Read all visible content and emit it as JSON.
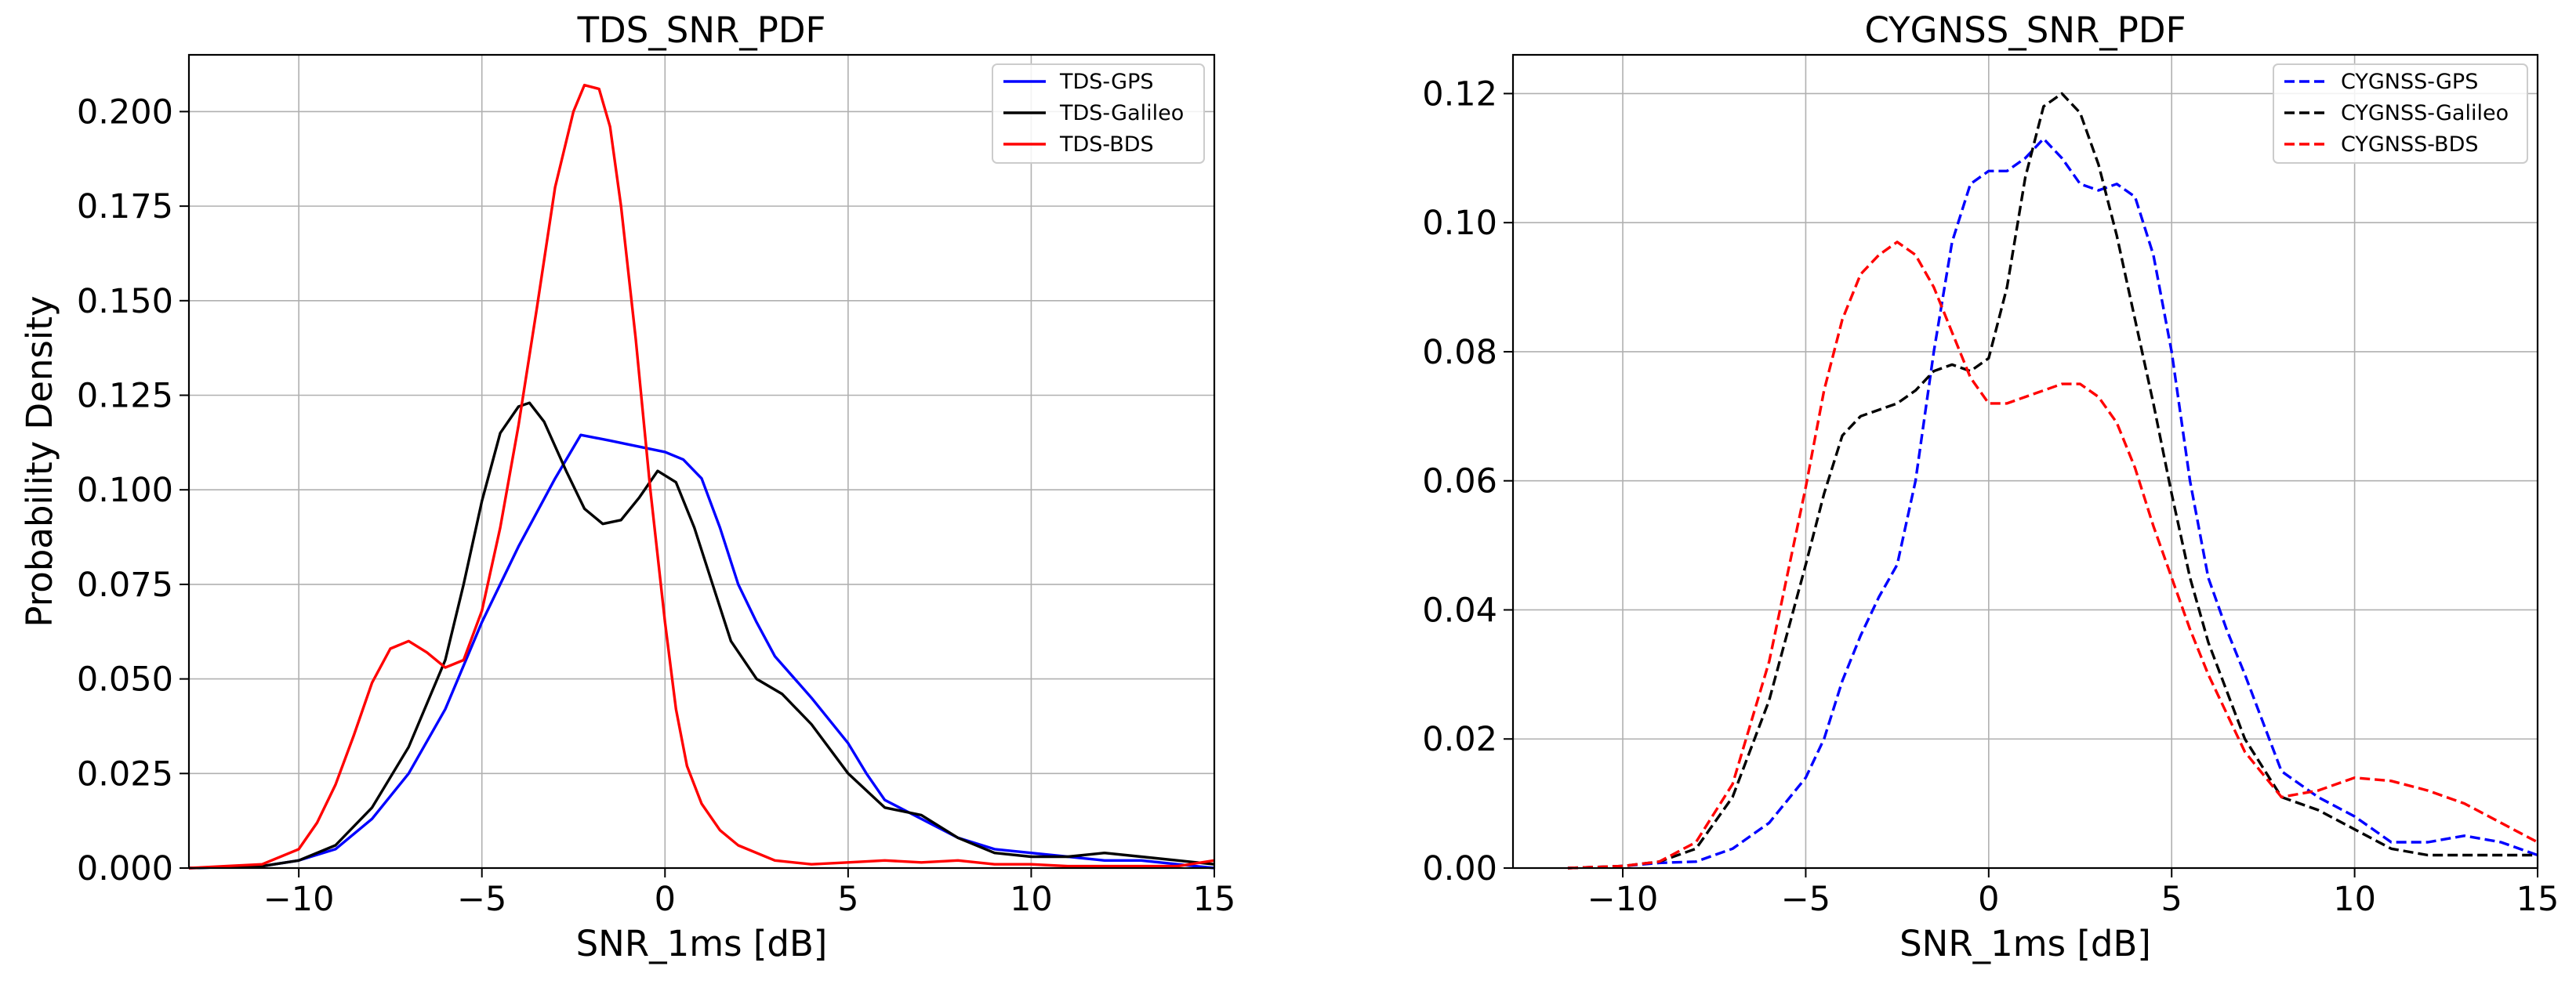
{
  "chart_data": [
    {
      "type": "line",
      "title": "TDS_SNR_PDF",
      "xlabel": "SNR_1ms [dB]",
      "ylabel": "Probability Density",
      "xlim": [
        -13,
        15
      ],
      "ylim": [
        0,
        0.215
      ],
      "xticks": [
        -10,
        -5,
        0,
        5,
        10,
        15
      ],
      "xtick_labels": [
        "−10",
        "−5",
        "0",
        "5",
        "10",
        "15"
      ],
      "yticks": [
        0,
        0.025,
        0.05,
        0.075,
        0.1,
        0.125,
        0.15,
        0.175,
        0.2
      ],
      "ytick_labels": [
        "0.000",
        "0.025",
        "0.050",
        "0.075",
        "0.100",
        "0.125",
        "0.150",
        "0.175",
        "0.200"
      ],
      "grid": true,
      "legend_position": "top-right",
      "series": [
        {
          "name": "TDS-GPS",
          "color": "#0000ff",
          "dash": "solid",
          "points": [
            [
              -13,
              0
            ],
            [
              -11,
              0.0005
            ],
            [
              -10,
              0.002
            ],
            [
              -9,
              0.005
            ],
            [
              -8,
              0.013
            ],
            [
              -7,
              0.025
            ],
            [
              -6,
              0.042
            ],
            [
              -5,
              0.065
            ],
            [
              -4,
              0.085
            ],
            [
              -3,
              0.103
            ],
            [
              -2.3,
              0.1145
            ],
            [
              -1.5,
              0.113
            ],
            [
              -1,
              0.112
            ],
            [
              0,
              0.11
            ],
            [
              0.5,
              0.108
            ],
            [
              1,
              0.103
            ],
            [
              1.5,
              0.09
            ],
            [
              2,
              0.075
            ],
            [
              2.5,
              0.065
            ],
            [
              3,
              0.056
            ],
            [
              4,
              0.045
            ],
            [
              5,
              0.033
            ],
            [
              5.5,
              0.025
            ],
            [
              6,
              0.018
            ],
            [
              7,
              0.013
            ],
            [
              8,
              0.008
            ],
            [
              9,
              0.005
            ],
            [
              10,
              0.004
            ],
            [
              11,
              0.003
            ],
            [
              12,
              0.002
            ],
            [
              13,
              0.002
            ],
            [
              14,
              0.001
            ],
            [
              15,
              0.0
            ]
          ]
        },
        {
          "name": "TDS-Galileo",
          "color": "#000000",
          "dash": "solid",
          "points": [
            [
              -13,
              0
            ],
            [
              -11,
              0.0005
            ],
            [
              -10,
              0.002
            ],
            [
              -9,
              0.006
            ],
            [
              -8,
              0.016
            ],
            [
              -7,
              0.032
            ],
            [
              -6,
              0.055
            ],
            [
              -5.5,
              0.075
            ],
            [
              -5,
              0.097
            ],
            [
              -4.5,
              0.115
            ],
            [
              -4,
              0.122
            ],
            [
              -3.7,
              0.123
            ],
            [
              -3.3,
              0.118
            ],
            [
              -2.7,
              0.105
            ],
            [
              -2.2,
              0.095
            ],
            [
              -1.7,
              0.091
            ],
            [
              -1.2,
              0.092
            ],
            [
              -0.7,
              0.098
            ],
            [
              -0.2,
              0.105
            ],
            [
              0.3,
              0.102
            ],
            [
              0.8,
              0.09
            ],
            [
              1.3,
              0.075
            ],
            [
              1.8,
              0.06
            ],
            [
              2.5,
              0.05
            ],
            [
              3.2,
              0.046
            ],
            [
              4,
              0.038
            ],
            [
              5,
              0.025
            ],
            [
              6,
              0.016
            ],
            [
              7,
              0.014
            ],
            [
              8,
              0.008
            ],
            [
              9,
              0.004
            ],
            [
              10,
              0.003
            ],
            [
              11,
              0.003
            ],
            [
              12,
              0.004
            ],
            [
              13,
              0.003
            ],
            [
              14,
              0.002
            ],
            [
              15,
              0.001
            ]
          ]
        },
        {
          "name": "TDS-BDS",
          "color": "#ff0000",
          "dash": "solid",
          "points": [
            [
              -13,
              0
            ],
            [
              -12,
              0.0005
            ],
            [
              -11,
              0.001
            ],
            [
              -10,
              0.005
            ],
            [
              -9.5,
              0.012
            ],
            [
              -9,
              0.022
            ],
            [
              -8.5,
              0.035
            ],
            [
              -8,
              0.049
            ],
            [
              -7.5,
              0.058
            ],
            [
              -7,
              0.06
            ],
            [
              -6.5,
              0.057
            ],
            [
              -6,
              0.053
            ],
            [
              -5.5,
              0.055
            ],
            [
              -5,
              0.068
            ],
            [
              -4.5,
              0.09
            ],
            [
              -4,
              0.117
            ],
            [
              -3.5,
              0.148
            ],
            [
              -3,
              0.18
            ],
            [
              -2.5,
              0.2
            ],
            [
              -2.2,
              0.207
            ],
            [
              -1.8,
              0.206
            ],
            [
              -1.5,
              0.196
            ],
            [
              -1.2,
              0.175
            ],
            [
              -0.8,
              0.14
            ],
            [
              -0.4,
              0.1
            ],
            [
              0,
              0.065
            ],
            [
              0.3,
              0.042
            ],
            [
              0.6,
              0.027
            ],
            [
              1,
              0.017
            ],
            [
              1.5,
              0.01
            ],
            [
              2,
              0.006
            ],
            [
              3,
              0.002
            ],
            [
              4,
              0.001
            ],
            [
              5,
              0.0015
            ],
            [
              6,
              0.002
            ],
            [
              7,
              0.0015
            ],
            [
              8,
              0.002
            ],
            [
              9,
              0.001
            ],
            [
              10,
              0.001
            ],
            [
              11,
              0.0005
            ],
            [
              12,
              0.0005
            ],
            [
              13,
              0.0005
            ],
            [
              14,
              0.0005
            ],
            [
              15,
              0.002
            ]
          ]
        }
      ]
    },
    {
      "type": "line",
      "title": "CYGNSS_SNR_PDF",
      "xlabel": "SNR_1ms [dB]",
      "ylabel": "",
      "xlim": [
        -13,
        15
      ],
      "ylim": [
        0,
        0.126
      ],
      "xticks": [
        -10,
        -5,
        0,
        5,
        10,
        15
      ],
      "xtick_labels": [
        "−10",
        "−5",
        "0",
        "5",
        "10",
        "15"
      ],
      "yticks": [
        0,
        0.02,
        0.04,
        0.06,
        0.08,
        0.1,
        0.12
      ],
      "ytick_labels": [
        "0.00",
        "0.02",
        "0.04",
        "0.06",
        "0.08",
        "0.10",
        "0.12"
      ],
      "grid": true,
      "legend_position": "top-right",
      "series": [
        {
          "name": "CYGNSS-GPS",
          "color": "#0000ff",
          "dash": "dashed",
          "points": [
            [
              -11.5,
              0
            ],
            [
              -10,
              0.0003
            ],
            [
              -9,
              0.0008
            ],
            [
              -8,
              0.001
            ],
            [
              -7,
              0.003
            ],
            [
              -6,
              0.007
            ],
            [
              -5,
              0.014
            ],
            [
              -4.5,
              0.02
            ],
            [
              -4,
              0.029
            ],
            [
              -3.5,
              0.036
            ],
            [
              -3,
              0.042
            ],
            [
              -2.5,
              0.047
            ],
            [
              -2,
              0.06
            ],
            [
              -1.5,
              0.08
            ],
            [
              -1,
              0.097
            ],
            [
              -0.5,
              0.106
            ],
            [
              0,
              0.108
            ],
            [
              0.5,
              0.108
            ],
            [
              1,
              0.11
            ],
            [
              1.5,
              0.113
            ],
            [
              2,
              0.11
            ],
            [
              2.5,
              0.106
            ],
            [
              3,
              0.105
            ],
            [
              3.5,
              0.106
            ],
            [
              4,
              0.104
            ],
            [
              4.5,
              0.095
            ],
            [
              5,
              0.08
            ],
            [
              5.5,
              0.06
            ],
            [
              6,
              0.045
            ],
            [
              6.5,
              0.037
            ],
            [
              7,
              0.03
            ],
            [
              8,
              0.015
            ],
            [
              9,
              0.011
            ],
            [
              10,
              0.008
            ],
            [
              11,
              0.004
            ],
            [
              12,
              0.004
            ],
            [
              13,
              0.005
            ],
            [
              14,
              0.004
            ],
            [
              15,
              0.002
            ]
          ]
        },
        {
          "name": "CYGNSS-Galileo",
          "color": "#000000",
          "dash": "dashed",
          "points": [
            [
              -11.5,
              0
            ],
            [
              -10,
              0.0003
            ],
            [
              -9,
              0.001
            ],
            [
              -8,
              0.003
            ],
            [
              -7,
              0.011
            ],
            [
              -6,
              0.026
            ],
            [
              -5,
              0.047
            ],
            [
              -4.5,
              0.058
            ],
            [
              -4,
              0.067
            ],
            [
              -3.5,
              0.07
            ],
            [
              -3,
              0.071
            ],
            [
              -2.5,
              0.072
            ],
            [
              -2,
              0.074
            ],
            [
              -1.5,
              0.077
            ],
            [
              -1,
              0.078
            ],
            [
              -0.5,
              0.077
            ],
            [
              0,
              0.079
            ],
            [
              0.5,
              0.09
            ],
            [
              1,
              0.107
            ],
            [
              1.5,
              0.118
            ],
            [
              2,
              0.12
            ],
            [
              2.5,
              0.117
            ],
            [
              3,
              0.109
            ],
            [
              3.5,
              0.098
            ],
            [
              4,
              0.085
            ],
            [
              4.5,
              0.072
            ],
            [
              5,
              0.058
            ],
            [
              5.5,
              0.045
            ],
            [
              6,
              0.035
            ],
            [
              7,
              0.02
            ],
            [
              8,
              0.011
            ],
            [
              9,
              0.009
            ],
            [
              10,
              0.006
            ],
            [
              11,
              0.003
            ],
            [
              12,
              0.002
            ],
            [
              13,
              0.002
            ],
            [
              15,
              0.002
            ]
          ]
        },
        {
          "name": "CYGNSS-BDS",
          "color": "#ff0000",
          "dash": "dashed",
          "points": [
            [
              -11.5,
              0
            ],
            [
              -10,
              0.0003
            ],
            [
              -9,
              0.001
            ],
            [
              -8,
              0.004
            ],
            [
              -7,
              0.013
            ],
            [
              -6,
              0.032
            ],
            [
              -5,
              0.059
            ],
            [
              -4.5,
              0.074
            ],
            [
              -4,
              0.085
            ],
            [
              -3.5,
              0.092
            ],
            [
              -3,
              0.095
            ],
            [
              -2.5,
              0.097
            ],
            [
              -2,
              0.095
            ],
            [
              -1.5,
              0.09
            ],
            [
              -1,
              0.083
            ],
            [
              -0.5,
              0.076
            ],
            [
              0,
              0.072
            ],
            [
              0.5,
              0.072
            ],
            [
              1,
              0.073
            ],
            [
              1.5,
              0.074
            ],
            [
              2,
              0.075
            ],
            [
              2.5,
              0.075
            ],
            [
              3,
              0.073
            ],
            [
              3.5,
              0.069
            ],
            [
              4,
              0.062
            ],
            [
              4.5,
              0.053
            ],
            [
              5,
              0.045
            ],
            [
              5.5,
              0.037
            ],
            [
              6,
              0.03
            ],
            [
              7,
              0.018
            ],
            [
              8,
              0.011
            ],
            [
              9,
              0.012
            ],
            [
              10,
              0.014
            ],
            [
              11,
              0.0135
            ],
            [
              12,
              0.012
            ],
            [
              13,
              0.01
            ],
            [
              14,
              0.007
            ],
            [
              15,
              0.004
            ]
          ]
        }
      ]
    }
  ]
}
